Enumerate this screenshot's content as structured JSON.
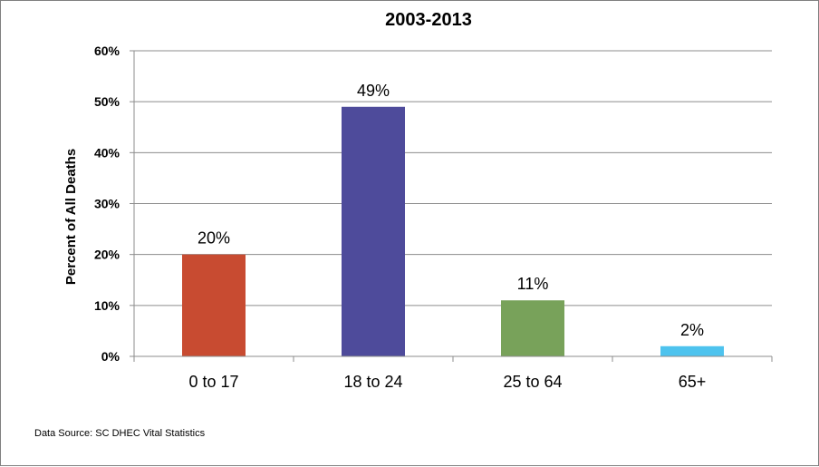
{
  "chart_data": {
    "type": "bar",
    "title": "2003-2013",
    "xlabel": "",
    "ylabel": "Percent of All Deaths",
    "categories": [
      "0 to 17",
      "18 to 24",
      "25 to 64",
      "65+"
    ],
    "values": [
      20,
      49,
      11,
      2
    ],
    "data_labels": [
      "20%",
      "49%",
      "11%",
      "2%"
    ],
    "colors": [
      "#C84B31",
      "#4E4B9B",
      "#78A25A",
      "#4EC3EE"
    ],
    "ylim": [
      0,
      60
    ],
    "yticks": [
      0,
      10,
      20,
      30,
      40,
      50,
      60
    ],
    "ytick_labels": [
      "0%",
      "10%",
      "20%",
      "30%",
      "40%",
      "50%",
      "60%"
    ],
    "grid": true,
    "legend": "none"
  },
  "source": "Data Source:  SC DHEC Vital Statistics"
}
